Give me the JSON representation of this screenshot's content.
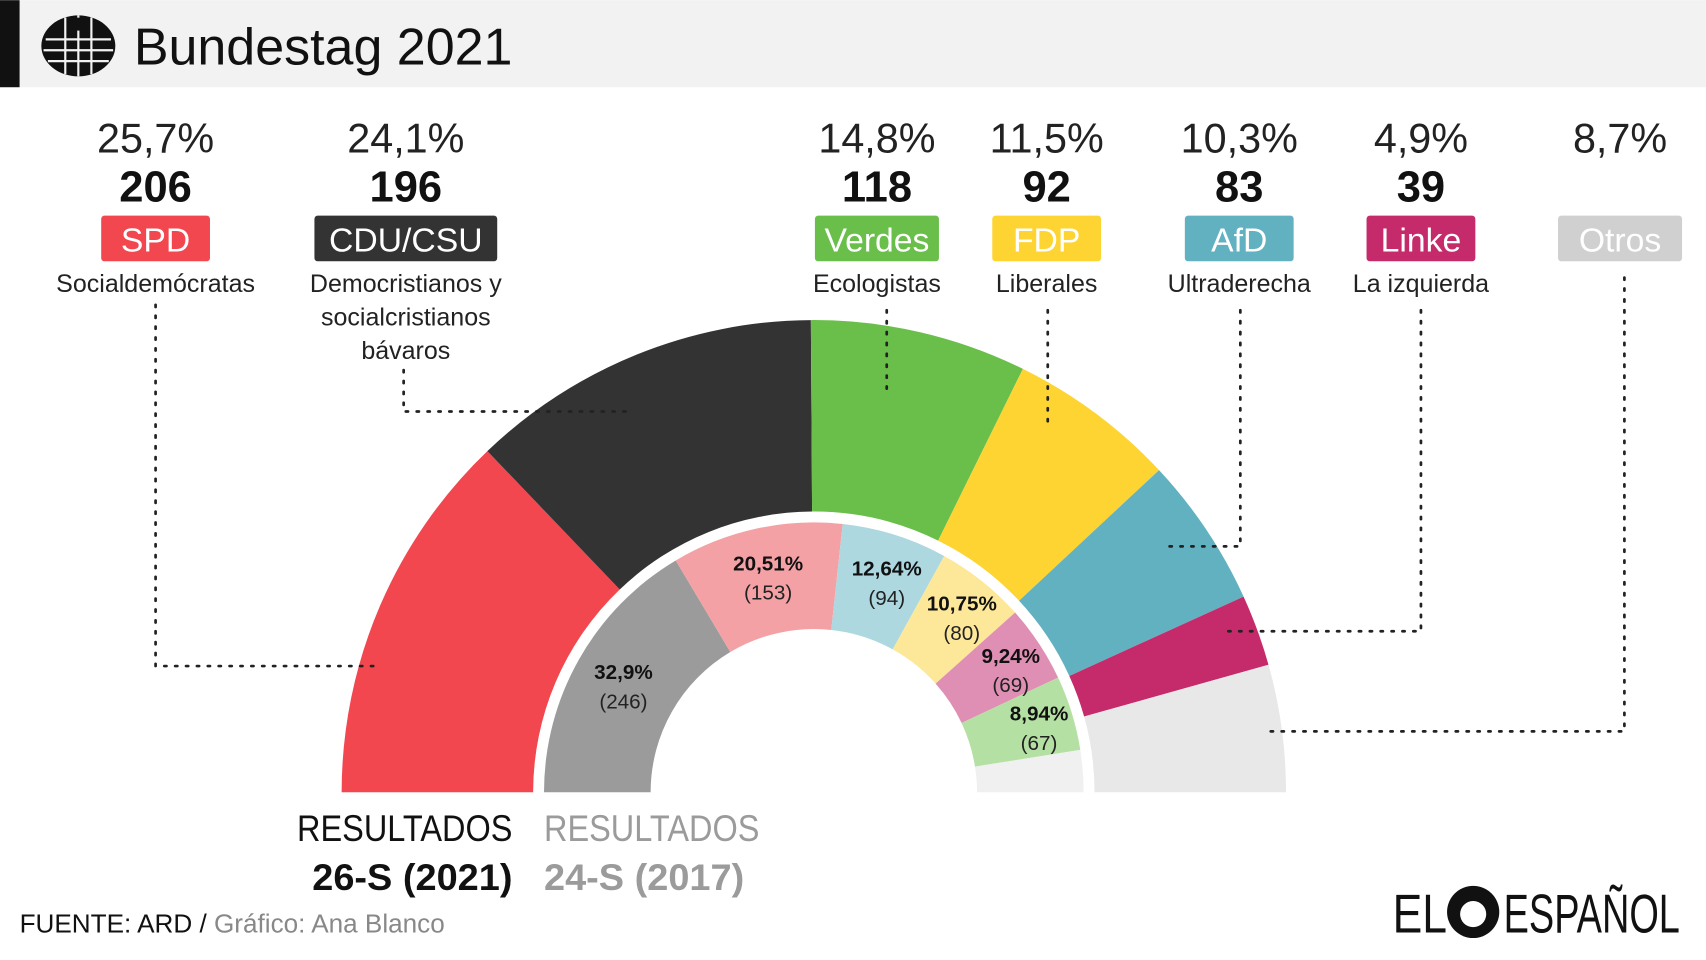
{
  "header": {
    "title": "Bundestag 2021",
    "icon": "federal-eagle-icon"
  },
  "parties": [
    {
      "abbr": "SPD",
      "desc": [
        "Socialdemócratas"
      ],
      "pct": "25,7%",
      "seats": "206",
      "color": "#f2474f"
    },
    {
      "abbr": "CDU/CSU",
      "desc": [
        "Democristianos y",
        "socialcristianos",
        "bávaros"
      ],
      "pct": "24,1%",
      "seats": "196",
      "color": "#333333"
    },
    {
      "abbr": "Verdes",
      "desc": [
        "Ecologistas"
      ],
      "pct": "14,8%",
      "seats": "118",
      "color": "#6abf4b"
    },
    {
      "abbr": "FDP",
      "desc": [
        "Liberales"
      ],
      "pct": "11,5%",
      "seats": "92",
      "color": "#fdd432"
    },
    {
      "abbr": "AfD",
      "desc": [
        "Ultraderecha"
      ],
      "pct": "10,3%",
      "seats": "83",
      "color": "#62b1c1"
    },
    {
      "abbr": "Linke",
      "desc": [
        "La izquierda"
      ],
      "pct": "4,9%",
      "seats": "39",
      "color": "#c52b6b"
    },
    {
      "abbr": "Otros",
      "desc": [],
      "pct": "8,7%",
      "seats": "",
      "color": "#d0d0d0"
    }
  ],
  "chart_data": {
    "type": "pie",
    "subtype": "double semicircle (parliament hemicycle)",
    "series": [
      {
        "name": "RESULTADOS 26-S (2021)",
        "categories": [
          "SPD",
          "CDU/CSU",
          "Verdes",
          "FDP",
          "AfD",
          "Linke",
          "Otros"
        ],
        "values": [
          25.7,
          24.1,
          14.8,
          11.5,
          10.3,
          4.9,
          8.7
        ],
        "seats": [
          206,
          196,
          118,
          92,
          83,
          39,
          null
        ],
        "colors": [
          "#f2474f",
          "#333333",
          "#6abf4b",
          "#fdd432",
          "#62b1c1",
          "#c52b6b",
          "#e8e8e8"
        ]
      },
      {
        "name": "RESULTADOS 24-S (2017)",
        "categories": [
          "CDU/CSU",
          "SPD",
          "AfD",
          "FDP",
          "Linke",
          "Verdes",
          "Otros"
        ],
        "values": [
          32.9,
          20.51,
          12.64,
          10.75,
          9.24,
          8.94,
          5.02
        ],
        "labels": [
          "32,9%",
          "20,51%",
          "12,64%",
          "10,75%",
          "9,24%",
          "8,94%",
          ""
        ],
        "seat_labels": [
          "(246)",
          "(153)",
          "(94)",
          "(80)",
          "(69)",
          "(67)",
          ""
        ],
        "colors": [
          "#9b9b9b",
          "#f4a1a5",
          "#add8e0",
          "#fde89a",
          "#e08fb4",
          "#b5e0a3",
          "#f0f0f0"
        ]
      }
    ]
  },
  "legend": {
    "current_line1": "RESULTADOS",
    "current_line2": "26-S (2021)",
    "previous_line1": "RESULTADOS",
    "previous_line2": "24-S (2017)"
  },
  "footer": {
    "source": "FUENTE: ARD / ",
    "credit": "Gráfico: Ana Blanco",
    "logo": "EL ESPAÑOL"
  }
}
